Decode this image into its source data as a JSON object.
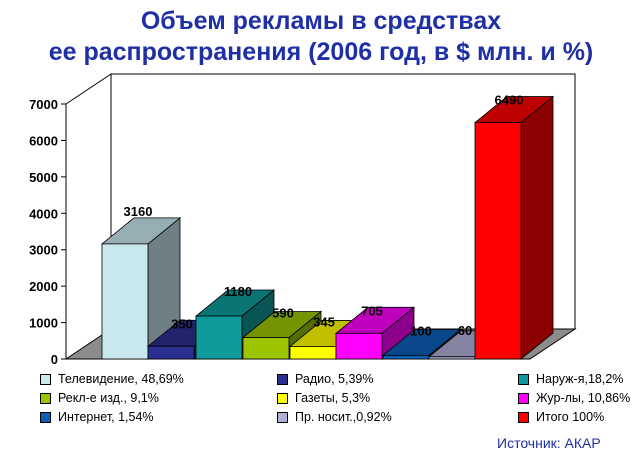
{
  "title_line1": "Объем рекламы в средствах",
  "title_line2": "ее распространения (2006 год, в $ млн. и %)",
  "source": "Источник: АКАР",
  "chart_data": {
    "type": "bar",
    "ylim": [
      0,
      7000
    ],
    "yticks": [
      0,
      1000,
      2000,
      3000,
      4000,
      5000,
      6000,
      7000
    ],
    "series": [
      {
        "name": "Телевидение, 48,69%",
        "value": 3160,
        "label": "3160",
        "color": "#c8e8ee"
      },
      {
        "name": "Радио, 5,39%",
        "value": 350,
        "label": "350",
        "color": "#2b2f8f"
      },
      {
        "name": "Наруж-я,18,2%",
        "value": 1180,
        "label": "1180",
        "color": "#0f9a9c"
      },
      {
        "name": "Рекл-е изд., 9,1%",
        "value": 590,
        "label": "590",
        "color": "#9bc500"
      },
      {
        "name": "Газеты, 5,3%",
        "value": 345,
        "label": "345",
        "color": "#ffff00"
      },
      {
        "name": "Жур-лы, 10,86%",
        "value": 705,
        "label": "705",
        "color": "#ff00ff"
      },
      {
        "name": "Интернет, 1,54%",
        "value": 100,
        "label": "100",
        "color": "#0b5fb6"
      },
      {
        "name": "Пр. носит.,0,92%",
        "value": 60,
        "label": "60",
        "color": "#b0b0d8"
      },
      {
        "name": "Итого 100%",
        "value": 6490,
        "label": "6490",
        "color": "#ff0000"
      }
    ]
  }
}
